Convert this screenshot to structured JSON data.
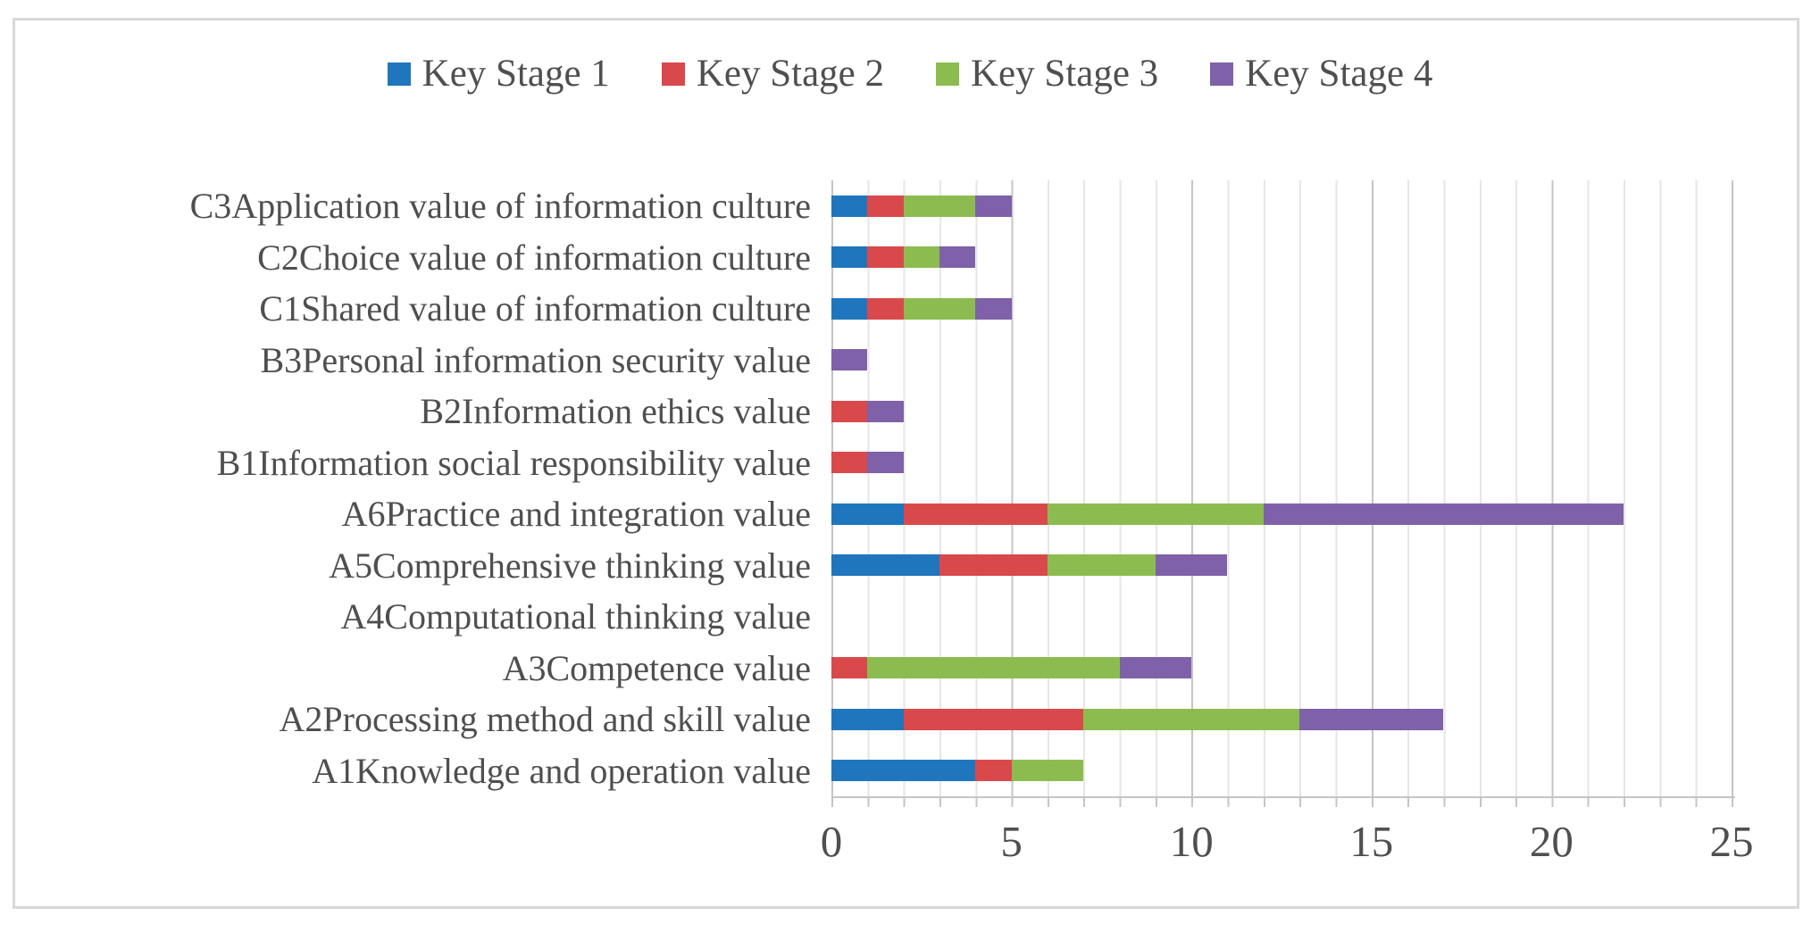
{
  "figure": {
    "background": "#ffffff",
    "frame_border_color": "#d8d8d8",
    "text_color": "#4f4f4f",
    "minor_gridline_color": "#e6e6e6",
    "major_gridline_color": "#c5c5c5"
  },
  "legend": {
    "position": "top-center",
    "items": [
      {
        "label": "Key Stage 1",
        "color": "#1f76bc"
      },
      {
        "label": "Key Stage 2",
        "color": "#d9494c"
      },
      {
        "label": "Key Stage 3",
        "color": "#8cbc50"
      },
      {
        "label": "Key Stage 4",
        "color": "#7e61a8"
      }
    ]
  },
  "chart_data": {
    "type": "bar",
    "orientation": "horizontal",
    "stacked": true,
    "title": "",
    "xlabel": "",
    "ylabel": "",
    "xlim": [
      0,
      25
    ],
    "x_major_ticks": [
      0,
      5,
      10,
      15,
      20,
      25
    ],
    "minor_grid_interval": 1,
    "major_grid_interval": 5,
    "legend_position": "top",
    "category_order": "top-to-bottom",
    "categories": [
      "C3Application value of information culture",
      "C2Choice value of information culture",
      "C1Shared value of information culture",
      "B3Personal information security value",
      "B2Information ethics value",
      "B1Information social responsibility value",
      "A6Practice and integration value",
      "A5Comprehensive thinking value",
      "A4Computational thinking value",
      "A3Competence value",
      "A2Processing method and skill value",
      "A1Knowledge and operation value"
    ],
    "series": [
      {
        "name": "Key Stage 1",
        "color": "#1f76bc",
        "values": [
          1,
          1,
          1,
          0,
          0,
          0,
          2,
          3,
          0,
          0,
          2,
          4
        ]
      },
      {
        "name": "Key Stage 2",
        "color": "#d9494c",
        "values": [
          1,
          1,
          1,
          0,
          1,
          1,
          4,
          3,
          0,
          1,
          5,
          1
        ]
      },
      {
        "name": "Key Stage 3",
        "color": "#8cbc50",
        "values": [
          2,
          1,
          2,
          0,
          0,
          0,
          6,
          3,
          0,
          7,
          6,
          2
        ]
      },
      {
        "name": "Key Stage 4",
        "color": "#7e61a8",
        "values": [
          1,
          1,
          1,
          1,
          1,
          1,
          10,
          2,
          0,
          2,
          4,
          0
        ]
      }
    ],
    "totals": [
      5,
      4,
      5,
      1,
      2,
      2,
      22,
      11,
      0,
      10,
      17,
      7
    ]
  }
}
